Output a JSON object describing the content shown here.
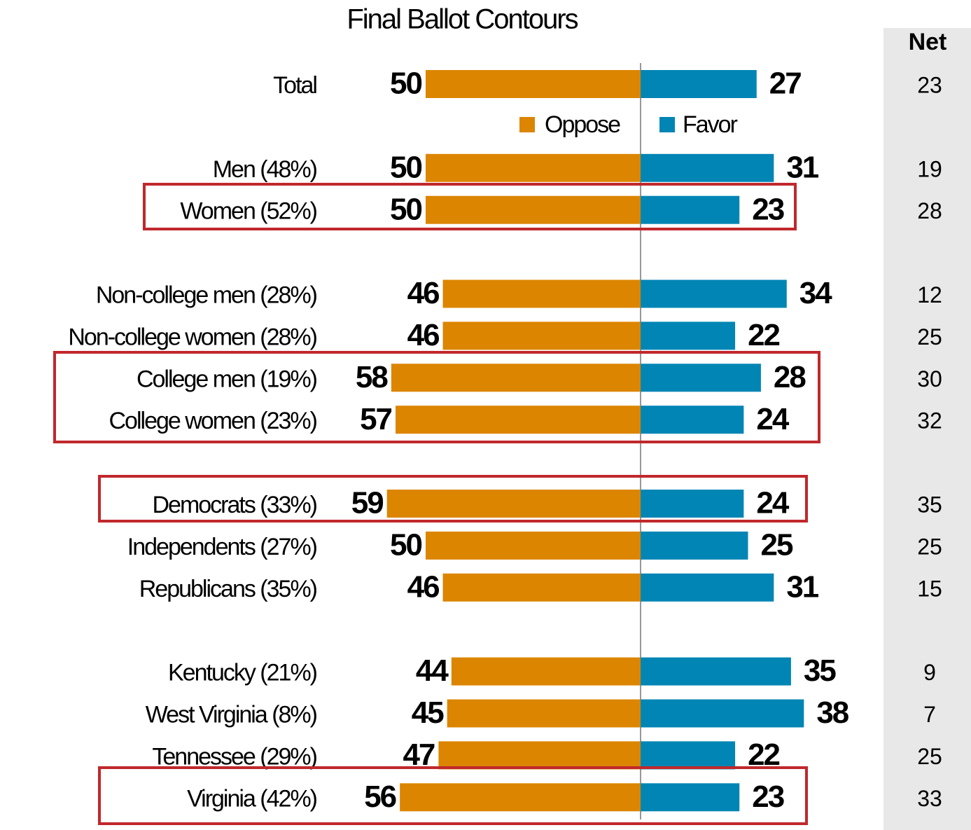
{
  "chart_data": {
    "type": "diverging_bar",
    "title": "Final Ballot Contours",
    "categories": [
      "Total",
      null,
      "Men (48%)",
      "Women (52%)",
      null,
      "Non-college men (28%)",
      "Non-college women (28%)",
      "College men (19%)",
      "College women (23%)",
      null,
      "Democrats (33%)",
      "Independents (27%)",
      "Republicans (35%)",
      null,
      "Kentucky (21%)",
      "West Virginia (8%)",
      "Tennessee (29%)",
      "Virginia (42%)"
    ],
    "series": [
      {
        "name": "Oppose",
        "color": "#dc8500",
        "values": [
          50,
          null,
          50,
          50,
          null,
          46,
          46,
          58,
          57,
          null,
          59,
          50,
          46,
          null,
          44,
          45,
          47,
          56
        ]
      },
      {
        "name": "Favor",
        "color": "#0085b5",
        "values": [
          27,
          null,
          31,
          23,
          null,
          34,
          22,
          28,
          24,
          null,
          24,
          25,
          31,
          null,
          35,
          38,
          22,
          23
        ]
      }
    ],
    "net": {
      "label": "Net",
      "values": [
        23,
        null,
        19,
        28,
        null,
        12,
        25,
        30,
        32,
        null,
        35,
        25,
        15,
        null,
        9,
        7,
        25,
        33
      ]
    }
  }
}
